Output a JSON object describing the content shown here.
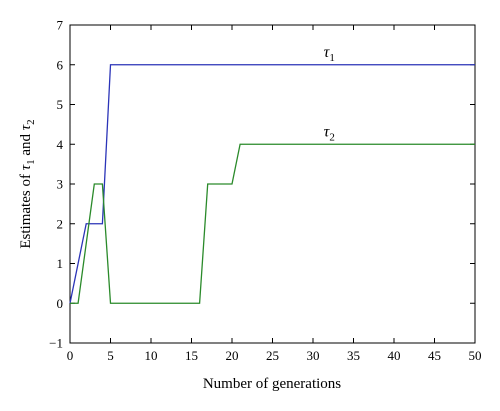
{
  "chart_data": {
    "type": "line",
    "xlabel": "Number of generations",
    "ylabel": {
      "prefix": "Estimates of ",
      "var1": "τ",
      "sub1": "1",
      "mid": " and ",
      "var2": "τ",
      "sub2": "2"
    },
    "xlim": [
      0,
      50
    ],
    "ylim": [
      -1,
      7
    ],
    "x_ticks": [
      0,
      5,
      10,
      15,
      20,
      25,
      30,
      35,
      40,
      45,
      50
    ],
    "y_ticks": [
      -1,
      0,
      1,
      2,
      3,
      4,
      5,
      6,
      7
    ],
    "grid": false,
    "legend": "none",
    "series": [
      {
        "label_symbol": "τ",
        "label_sub": "1",
        "color": "#2b34b8",
        "x": [
          0,
          2,
          4,
          5,
          50
        ],
        "y": [
          0,
          2,
          2,
          6,
          6
        ]
      },
      {
        "label_symbol": "τ",
        "label_sub": "2",
        "color": "#2a8a2a",
        "x": [
          0,
          1,
          3,
          4,
          5,
          16,
          17,
          20,
          21,
          50
        ],
        "y": [
          0,
          0,
          3,
          3,
          0,
          0,
          3,
          3,
          4,
          4
        ]
      }
    ]
  }
}
